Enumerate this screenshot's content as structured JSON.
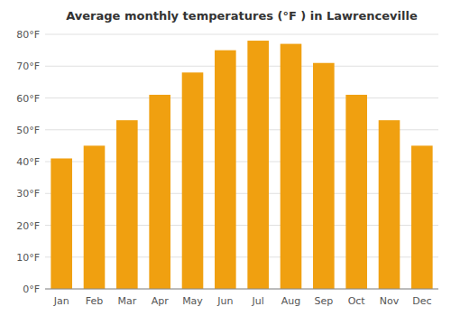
{
  "chart_data": {
    "type": "bar",
    "title": "Average monthly temperatures (°F ) in Lawrenceville",
    "categories": [
      "Jan",
      "Feb",
      "Mar",
      "Apr",
      "May",
      "Jun",
      "Jul",
      "Aug",
      "Sep",
      "Oct",
      "Nov",
      "Dec"
    ],
    "values": [
      41,
      45,
      53,
      61,
      68,
      75,
      78,
      77,
      71,
      61,
      53,
      45
    ],
    "color": "#F0A010",
    "ylim": [
      0,
      80
    ],
    "yticks": [
      {
        "value": 0,
        "label": "0°F"
      },
      {
        "value": 10,
        "label": "10°F"
      },
      {
        "value": 20,
        "label": "20°F"
      },
      {
        "value": 30,
        "label": "30°F"
      },
      {
        "value": 40,
        "label": "40°F"
      },
      {
        "value": 50,
        "label": "50°F"
      },
      {
        "value": 60,
        "label": "60°F"
      },
      {
        "value": 70,
        "label": "70°F"
      },
      {
        "value": 80,
        "label": "80°F"
      }
    ],
    "grid": true
  }
}
